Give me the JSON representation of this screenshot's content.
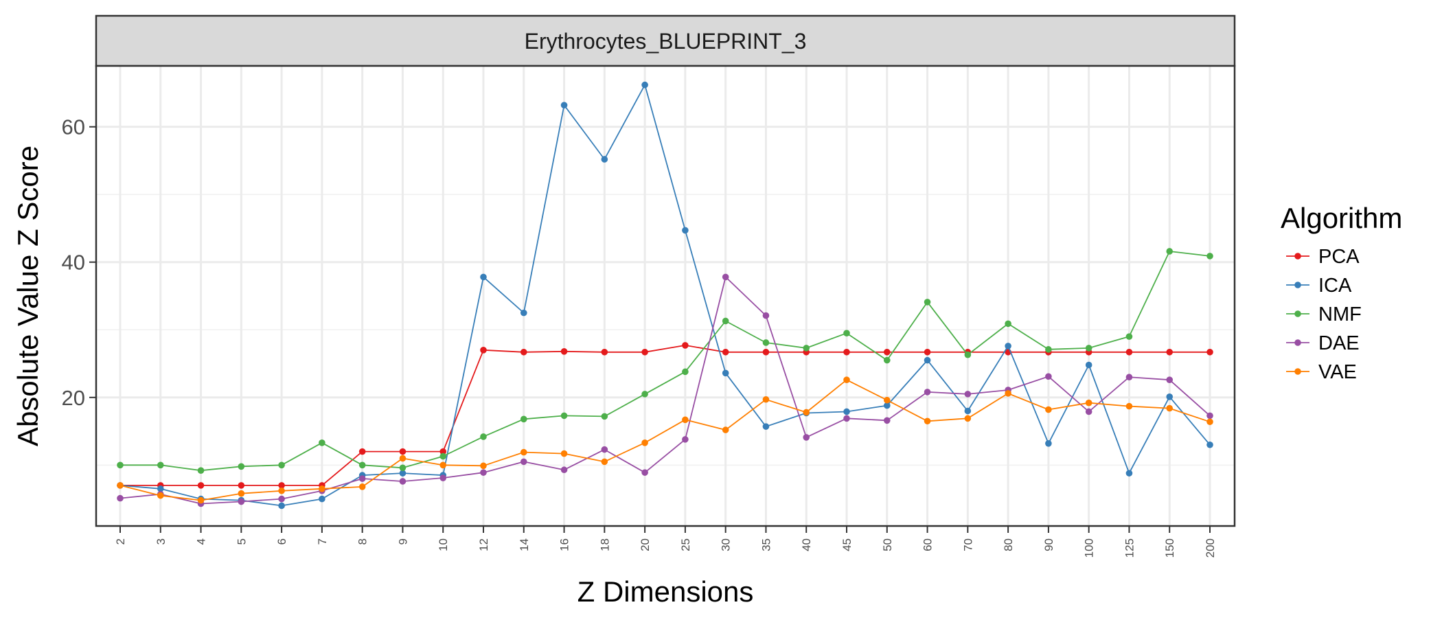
{
  "chart_data": {
    "type": "line",
    "panel_title": "Erythrocytes_BLUEPRINT_3",
    "xlabel": "Z Dimensions",
    "ylabel": "Absolute Value Z Score",
    "categories": [
      "2",
      "3",
      "4",
      "5",
      "6",
      "7",
      "8",
      "9",
      "10",
      "12",
      "14",
      "16",
      "18",
      "20",
      "25",
      "30",
      "35",
      "40",
      "45",
      "50",
      "60",
      "70",
      "80",
      "90",
      "100",
      "125",
      "150",
      "200"
    ],
    "ylim": [
      1,
      69
    ],
    "yticks": [
      20,
      40,
      60
    ],
    "grid": true,
    "legend": {
      "title": "Algorithm",
      "position": "right"
    },
    "series": [
      {
        "name": "PCA",
        "color": "#E41A1C",
        "values": [
          7.0,
          7.0,
          7.0,
          7.0,
          7.0,
          7.0,
          12.0,
          12.0,
          12.0,
          27.0,
          26.7,
          26.8,
          26.7,
          26.7,
          27.7,
          26.7,
          26.7,
          26.7,
          26.7,
          26.7,
          26.7,
          26.7,
          26.7,
          26.7,
          26.7,
          26.7,
          26.7,
          26.7
        ]
      },
      {
        "name": "ICA",
        "color": "#377EB8",
        "values": [
          7.0,
          6.5,
          5.0,
          4.8,
          4.0,
          5.0,
          8.5,
          8.8,
          8.5,
          37.8,
          32.5,
          63.2,
          55.2,
          66.2,
          44.7,
          23.6,
          15.7,
          17.7,
          17.9,
          18.8,
          25.5,
          18.0,
          27.6,
          13.2,
          24.8,
          8.8,
          20.1,
          13.0
        ]
      },
      {
        "name": "NMF",
        "color": "#4DAF4A",
        "values": [
          10.0,
          10.0,
          9.2,
          9.8,
          10.0,
          13.3,
          10.0,
          9.6,
          11.3,
          14.2,
          16.8,
          17.3,
          17.2,
          20.5,
          23.8,
          31.3,
          28.1,
          27.3,
          29.5,
          25.5,
          34.1,
          26.3,
          30.9,
          27.1,
          27.3,
          29.0,
          41.6,
          40.9
        ]
      },
      {
        "name": "DAE",
        "color": "#984EA3",
        "values": [
          5.1,
          5.7,
          4.3,
          4.6,
          5.0,
          6.2,
          8.0,
          7.6,
          8.1,
          8.9,
          10.5,
          9.3,
          12.3,
          8.9,
          13.8,
          37.8,
          32.1,
          14.1,
          16.9,
          16.6,
          20.8,
          20.5,
          21.1,
          23.1,
          17.9,
          23.0,
          22.6,
          17.3
        ]
      },
      {
        "name": "VAE",
        "color": "#FF7F00",
        "values": [
          7.0,
          5.5,
          4.8,
          5.8,
          6.2,
          6.5,
          6.8,
          11.0,
          10.0,
          9.9,
          11.9,
          11.7,
          10.5,
          13.3,
          16.7,
          15.2,
          19.7,
          17.8,
          22.6,
          19.6,
          16.5,
          16.9,
          20.6,
          18.2,
          19.2,
          18.7,
          18.4,
          16.4
        ]
      }
    ]
  }
}
